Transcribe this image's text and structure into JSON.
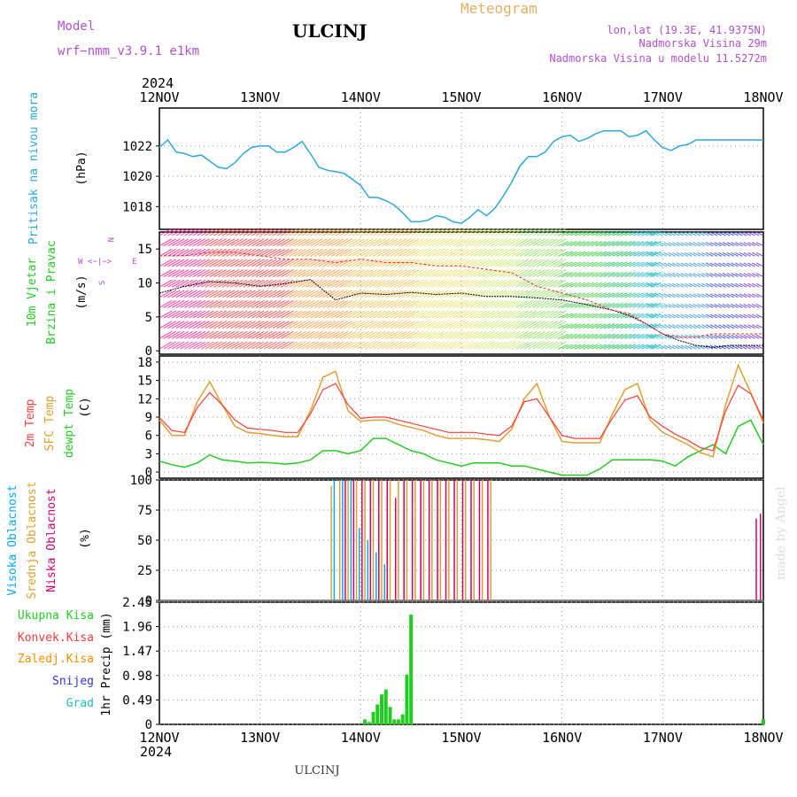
{
  "header": {
    "model_label": "Model",
    "model_name": "wrf−nmm_v3.9.1  e1km",
    "station": "ULCINJ",
    "title": "Meteogram",
    "lonlat": "lon,lat (19.3E, 41.9375N)",
    "elevation": "Nadmorska Visina 29m",
    "model_elevation": "Nadmorska Visina u modelu 11.5272m"
  },
  "footer": {
    "station": "ULCINJ",
    "credit": "made by Angel"
  },
  "colors": {
    "pressure": "#2aa8e0",
    "wind_speed": "#000000",
    "gust": "#ff2a2a",
    "temp2m": "#ff3b3b",
    "sfc_temp": "#e0a030",
    "dewpt": "#22cc22",
    "high_cloud": "#00aaff",
    "mid_cloud": "#e0a030",
    "low_cloud": "#d4006a",
    "precip_total": "#22cc22",
    "precip_conv": "#ff2a2a",
    "precip_grid": "#ff8c00",
    "snow": "#3333dd",
    "graupel": "#22bbbb",
    "label_purple": "#b050d0",
    "label_gold": "#e0b060",
    "label_blue": "#2aa8e0",
    "label_green": "#22cc22",
    "label_red": "#ff3b3b",
    "label_pink": "#d4006a",
    "label_orange": "#ff8c00"
  },
  "time_axis": {
    "year": "2024",
    "ticks": [
      "12NOV",
      "13NOV",
      "14NOV",
      "15NOV",
      "16NOV",
      "17NOV",
      "18NOV"
    ]
  },
  "panels": {
    "pressure": {
      "label": "Pritisak na nivou mora",
      "unit": "(hPa)",
      "ticks": [
        "1018",
        "1020",
        "1022"
      ]
    },
    "wind": {
      "label1": "10m Vjetar",
      "label2": "Brzina i Pravac",
      "unit": "(m/s)",
      "ticks": [
        "0",
        "5",
        "10",
        "15"
      ],
      "compass_n": "N",
      "compass_e": "E",
      "compass_w": "W",
      "compass_s": "S",
      "compass_row1": "<−|−>"
    },
    "temp": {
      "label1": "2m Temp",
      "label2": "SFC Temp",
      "label3": "dewpt Temp",
      "unit": "(C)",
      "ticks": [
        "0",
        "3",
        "6",
        "9",
        "12",
        "15",
        "18"
      ]
    },
    "cloud": {
      "label1": "Visoka Oblacnost",
      "label2": "Srednja Oblacnost",
      "label3": "Niska Oblacnost",
      "unit": "(%)",
      "ticks": [
        "0",
        "25",
        "50",
        "75",
        "100"
      ]
    },
    "precip": {
      "labels": [
        "Ukupna Kisa",
        "Konvek.Kisa",
        "Zaledj.Kisa",
        "Snijeg",
        "Grad"
      ],
      "unit": "1hr Precip (mm)",
      "ticks": [
        "0",
        "0.49",
        "0.98",
        "1.47",
        "1.96",
        "2.45"
      ]
    }
  },
  "chart_data": [
    {
      "type": "line",
      "title": "",
      "ylabel": "(hPa)",
      "ylim": [
        1016.5,
        1024.5
      ],
      "x_unit": "hours since 12NOV 00UTC",
      "series": [
        {
          "name": "Pritisak na nivou mora",
          "x": [
            0,
            2,
            4,
            6,
            8,
            10,
            12,
            14,
            16,
            18,
            20,
            22,
            24,
            26,
            28,
            30,
            32,
            34,
            36,
            38,
            40,
            42,
            44,
            46,
            48,
            50,
            52,
            54,
            56,
            58,
            60,
            62,
            64,
            66,
            68,
            70,
            72,
            74,
            76,
            78,
            80,
            82,
            84,
            86,
            88,
            90,
            92,
            94,
            96,
            98,
            100,
            102,
            104,
            106,
            108,
            110,
            112,
            114,
            116,
            118,
            120,
            122,
            124,
            126,
            128,
            130,
            132,
            134,
            136,
            138,
            140,
            142,
            144
          ],
          "values": [
            1021.9,
            1022.4,
            1021.6,
            1021.5,
            1021.3,
            1021.4,
            1021.0,
            1020.6,
            1020.5,
            1020.9,
            1021.5,
            1021.9,
            1022.0,
            1022.0,
            1021.6,
            1021.6,
            1021.9,
            1022.3,
            1021.5,
            1020.6,
            1020.4,
            1020.3,
            1020.2,
            1019.8,
            1019.4,
            1018.6,
            1018.6,
            1018.4,
            1018.1,
            1017.6,
            1017.0,
            1017.0,
            1017.1,
            1017.4,
            1017.3,
            1017.0,
            1016.9,
            1017.3,
            1017.8,
            1017.4,
            1017.9,
            1018.7,
            1019.6,
            1020.7,
            1021.3,
            1021.3,
            1021.6,
            1022.3,
            1022.6,
            1022.7,
            1022.3,
            1022.5,
            1022.8,
            1023.0,
            1023.0,
            1023.0,
            1022.6,
            1022.7,
            1023.0,
            1022.4,
            1021.9,
            1021.7,
            1022.0,
            1022.1,
            1022.4,
            1022.4,
            1022.4,
            1022.4,
            1022.4,
            1022.4,
            1022.4,
            1022.4,
            1022.4
          ]
        }
      ]
    },
    {
      "type": "line",
      "title": "",
      "ylabel": "(m/s)",
      "ylim": [
        -0.5,
        17.5
      ],
      "x_unit": "hours since 12NOV 00UTC",
      "series": [
        {
          "name": "wind speed",
          "x": [
            0,
            6,
            12,
            18,
            24,
            30,
            36,
            42,
            48,
            54,
            60,
            66,
            72,
            78,
            84,
            90,
            96,
            102,
            108,
            112,
            116,
            120,
            124,
            128,
            132,
            136,
            140,
            144
          ],
          "values": [
            8.5,
            9.5,
            10.2,
            10.0,
            9.5,
            9.9,
            10.5,
            7.5,
            8.5,
            8.3,
            8.6,
            8.3,
            8.5,
            8.0,
            8.0,
            7.8,
            7.5,
            6.8,
            6.0,
            5.2,
            4.0,
            2.5,
            1.5,
            0.8,
            0.5,
            0.8,
            0.8,
            0.8
          ]
        },
        {
          "name": "gust",
          "x": [
            0,
            6,
            12,
            18,
            24,
            30,
            36,
            42,
            48,
            54,
            60,
            66,
            72,
            78,
            84,
            90,
            96,
            102,
            108,
            112,
            116,
            120,
            124,
            128,
            132,
            136,
            140,
            144
          ],
          "values": [
            14.0,
            14.0,
            14.5,
            14.5,
            14.0,
            13.5,
            13.5,
            13.0,
            13.5,
            13.0,
            13.0,
            12.5,
            12.5,
            12.0,
            11.5,
            9.5,
            8.5,
            7.5,
            6.0,
            5.5,
            4.0,
            2.5,
            2.0,
            2.0,
            2.5,
            2.5,
            2.5,
            2.5
          ]
        }
      ]
    },
    {
      "type": "line",
      "title": "",
      "ylabel": "(C)",
      "ylim": [
        -1,
        19
      ],
      "x_unit": "hours since 12NOV 00UTC",
      "series": [
        {
          "name": "2m Temp",
          "x": [
            0,
            3,
            6,
            9,
            12,
            15,
            18,
            21,
            24,
            27,
            30,
            33,
            36,
            39,
            42,
            45,
            48,
            51,
            54,
            57,
            60,
            63,
            66,
            69,
            72,
            75,
            78,
            81,
            84,
            87,
            90,
            93,
            96,
            99,
            102,
            105,
            108,
            111,
            114,
            117,
            120,
            123,
            126,
            129,
            132,
            135,
            138,
            141,
            144
          ],
          "values": [
            8.9,
            6.8,
            6.5,
            10.5,
            13.0,
            11.0,
            8.5,
            7.2,
            7.0,
            6.8,
            6.5,
            6.5,
            9.5,
            13.5,
            14.5,
            11.0,
            8.8,
            9.0,
            9.0,
            8.5,
            8.0,
            7.5,
            7.0,
            6.5,
            6.5,
            6.5,
            6.2,
            6.0,
            7.5,
            11.5,
            12.0,
            9.0,
            6.0,
            5.5,
            5.5,
            5.5,
            8.8,
            11.8,
            12.5,
            9.0,
            7.5,
            6.2,
            5.2,
            4.0,
            3.5,
            10.0,
            14.2,
            12.8,
            8.5
          ]
        },
        {
          "name": "SFC Temp",
          "x": [
            0,
            3,
            6,
            9,
            12,
            15,
            18,
            21,
            24,
            27,
            30,
            33,
            36,
            39,
            42,
            45,
            48,
            51,
            54,
            57,
            60,
            63,
            66,
            69,
            72,
            75,
            78,
            81,
            84,
            87,
            90,
            93,
            96,
            99,
            102,
            105,
            108,
            111,
            114,
            117,
            120,
            123,
            126,
            129,
            132,
            135,
            138,
            141,
            144
          ],
          "values": [
            8.5,
            6.0,
            6.0,
            11.5,
            14.8,
            11.0,
            7.5,
            6.5,
            6.3,
            6.0,
            5.8,
            5.8,
            10.0,
            15.5,
            16.5,
            10.0,
            8.3,
            8.5,
            8.5,
            7.8,
            7.3,
            6.8,
            6.0,
            5.5,
            5.5,
            5.5,
            5.3,
            5.0,
            7.0,
            12.0,
            14.5,
            9.0,
            5.0,
            4.8,
            4.8,
            4.8,
            9.5,
            13.5,
            14.5,
            8.5,
            6.5,
            5.5,
            4.5,
            3.2,
            2.5,
            11.0,
            17.5,
            13.0,
            8.0
          ]
        },
        {
          "name": "dewpt Temp",
          "x": [
            0,
            3,
            6,
            9,
            12,
            15,
            18,
            21,
            24,
            27,
            30,
            33,
            36,
            39,
            42,
            45,
            48,
            51,
            54,
            57,
            60,
            63,
            66,
            69,
            72,
            75,
            78,
            81,
            84,
            87,
            90,
            93,
            96,
            99,
            102,
            105,
            108,
            111,
            114,
            117,
            120,
            123,
            126,
            129,
            132,
            135,
            138,
            141,
            144
          ],
          "values": [
            1.8,
            1.2,
            0.8,
            1.5,
            2.8,
            2.0,
            1.8,
            1.5,
            1.6,
            1.5,
            1.3,
            1.5,
            2.0,
            3.5,
            3.5,
            3.0,
            3.5,
            5.5,
            5.5,
            4.5,
            3.5,
            3.0,
            2.0,
            1.5,
            1.0,
            1.5,
            1.5,
            1.5,
            1.0,
            1.0,
            0.5,
            0.0,
            -0.5,
            -0.5,
            -0.5,
            0.5,
            2.0,
            2.0,
            2.0,
            2.0,
            1.8,
            1.0,
            2.5,
            3.5,
            4.5,
            3.0,
            7.5,
            8.5,
            4.5
          ]
        }
      ]
    },
    {
      "type": "bar",
      "title": "",
      "ylabel": "(%)",
      "ylim": [
        0,
        100
      ],
      "x_unit": "hours since 12NOV 00UTC",
      "series": [
        {
          "name": "Visoka Oblacnost",
          "x": [
            42,
            44,
            46,
            48,
            50,
            52,
            54
          ],
          "values": [
            100,
            100,
            100,
            60,
            50,
            40,
            30
          ]
        },
        {
          "name": "Srednja Oblacnost",
          "x": [
            41,
            43,
            45,
            47,
            49,
            51,
            53,
            55,
            57,
            59,
            61,
            63,
            65,
            67,
            69,
            71,
            73,
            75,
            77,
            79
          ],
          "values": [
            95,
            100,
            100,
            100,
            100,
            100,
            100,
            100,
            100,
            100,
            100,
            100,
            100,
            100,
            100,
            100,
            100,
            100,
            100,
            100
          ]
        },
        {
          "name": "Niska Oblacnost",
          "x": [
            44,
            46,
            48,
            50,
            52,
            54,
            56,
            58,
            60,
            62,
            64,
            66,
            68,
            70,
            72,
            74,
            76,
            78,
            142,
            143
          ],
          "values": [
            100,
            100,
            100,
            100,
            100,
            100,
            85,
            100,
            100,
            100,
            100,
            100,
            100,
            100,
            100,
            100,
            100,
            100,
            68,
            72
          ]
        }
      ]
    },
    {
      "type": "bar",
      "title": "",
      "ylabel": "1hr Precip (mm)",
      "ylim": [
        0,
        2.45
      ],
      "x_unit": "hours since 12NOV 00UTC",
      "series": [
        {
          "name": "Ukupna Kisa",
          "x": [
            49,
            50,
            51,
            52,
            53,
            54,
            55,
            56,
            57,
            58,
            59,
            60,
            144
          ],
          "values": [
            0.1,
            0.05,
            0.25,
            0.4,
            0.6,
            0.7,
            0.35,
            0.1,
            0.1,
            0.2,
            1.0,
            2.2,
            0.1
          ]
        }
      ]
    }
  ]
}
